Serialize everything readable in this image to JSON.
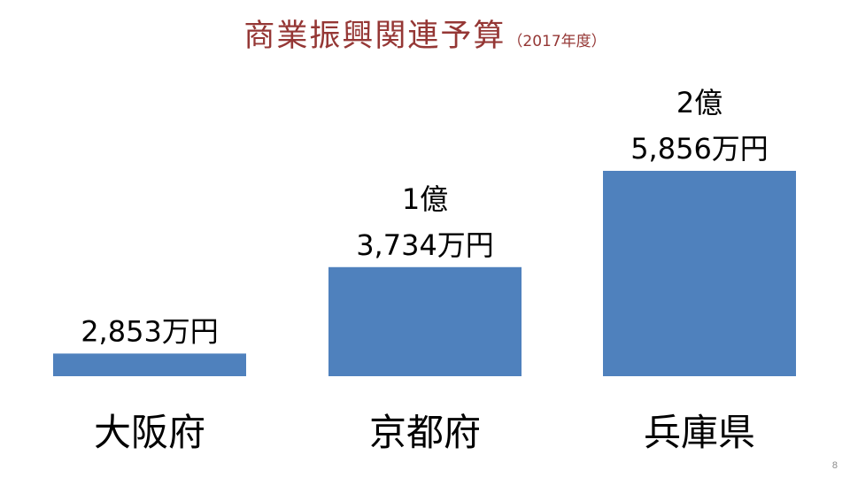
{
  "title": {
    "main": "商業振興関連予算",
    "sub": "（2017年度）"
  },
  "page_number": "8",
  "colors": {
    "bar": "#4f81bd",
    "title": "#953735",
    "text": "#000000"
  },
  "chart_data": {
    "type": "bar",
    "categories": [
      "大阪府",
      "京都府",
      "兵庫県"
    ],
    "values": [
      2853,
      13734,
      25856
    ],
    "unit": "万円",
    "data_labels": [
      [
        "2,853万円"
      ],
      [
        "1億",
        "3,734万円"
      ],
      [
        "2億",
        "5,856万円"
      ]
    ],
    "ylim": [
      0,
      25856
    ],
    "grid": false,
    "legend": "none"
  }
}
